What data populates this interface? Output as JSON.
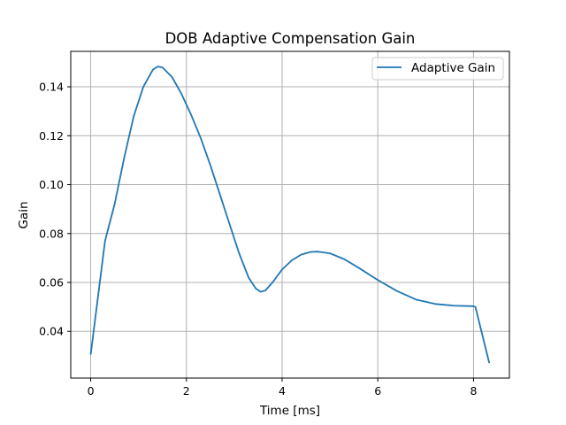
{
  "chart_data": {
    "type": "line",
    "title": "DOB Adaptive Compensation Gain",
    "xlabel": "Time [ms]",
    "ylabel": "Gain",
    "xlim": [
      -0.4167,
      8.75
    ],
    "ylim": [
      0.0209,
      0.1545
    ],
    "xticks": [
      0,
      2,
      4,
      6,
      8
    ],
    "yticks": [
      0.04,
      0.06,
      0.08,
      0.1,
      0.12,
      0.14
    ],
    "xtick_labels": [
      "0",
      "2",
      "4",
      "6",
      "8"
    ],
    "ytick_labels": [
      "0.04",
      "0.06",
      "0.08",
      "0.10",
      "0.12",
      "0.14"
    ],
    "grid": true,
    "legend_position": "top-right",
    "series": [
      {
        "name": "Adaptive Gain",
        "color": "#1f77b4",
        "x": [
          0.0,
          0.3,
          0.5,
          0.7,
          0.9,
          1.1,
          1.3,
          1.4,
          1.5,
          1.7,
          1.9,
          2.1,
          2.3,
          2.5,
          2.7,
          2.9,
          3.1,
          3.3,
          3.45,
          3.55,
          3.65,
          3.8,
          4.0,
          4.2,
          4.4,
          4.6,
          4.75,
          5.0,
          5.3,
          5.6,
          6.0,
          6.4,
          6.8,
          7.2,
          7.6,
          8.0,
          8.04,
          8.33
        ],
        "y": [
          0.0305,
          0.077,
          0.092,
          0.111,
          0.128,
          0.14,
          0.147,
          0.1483,
          0.1479,
          0.144,
          0.137,
          0.1285,
          0.119,
          0.108,
          0.096,
          0.084,
          0.072,
          0.062,
          0.0575,
          0.0562,
          0.0567,
          0.06,
          0.0653,
          0.069,
          0.0714,
          0.0725,
          0.0726,
          0.0719,
          0.0695,
          0.066,
          0.061,
          0.0565,
          0.053,
          0.0512,
          0.0505,
          0.0503,
          0.05,
          0.027
        ]
      }
    ]
  }
}
